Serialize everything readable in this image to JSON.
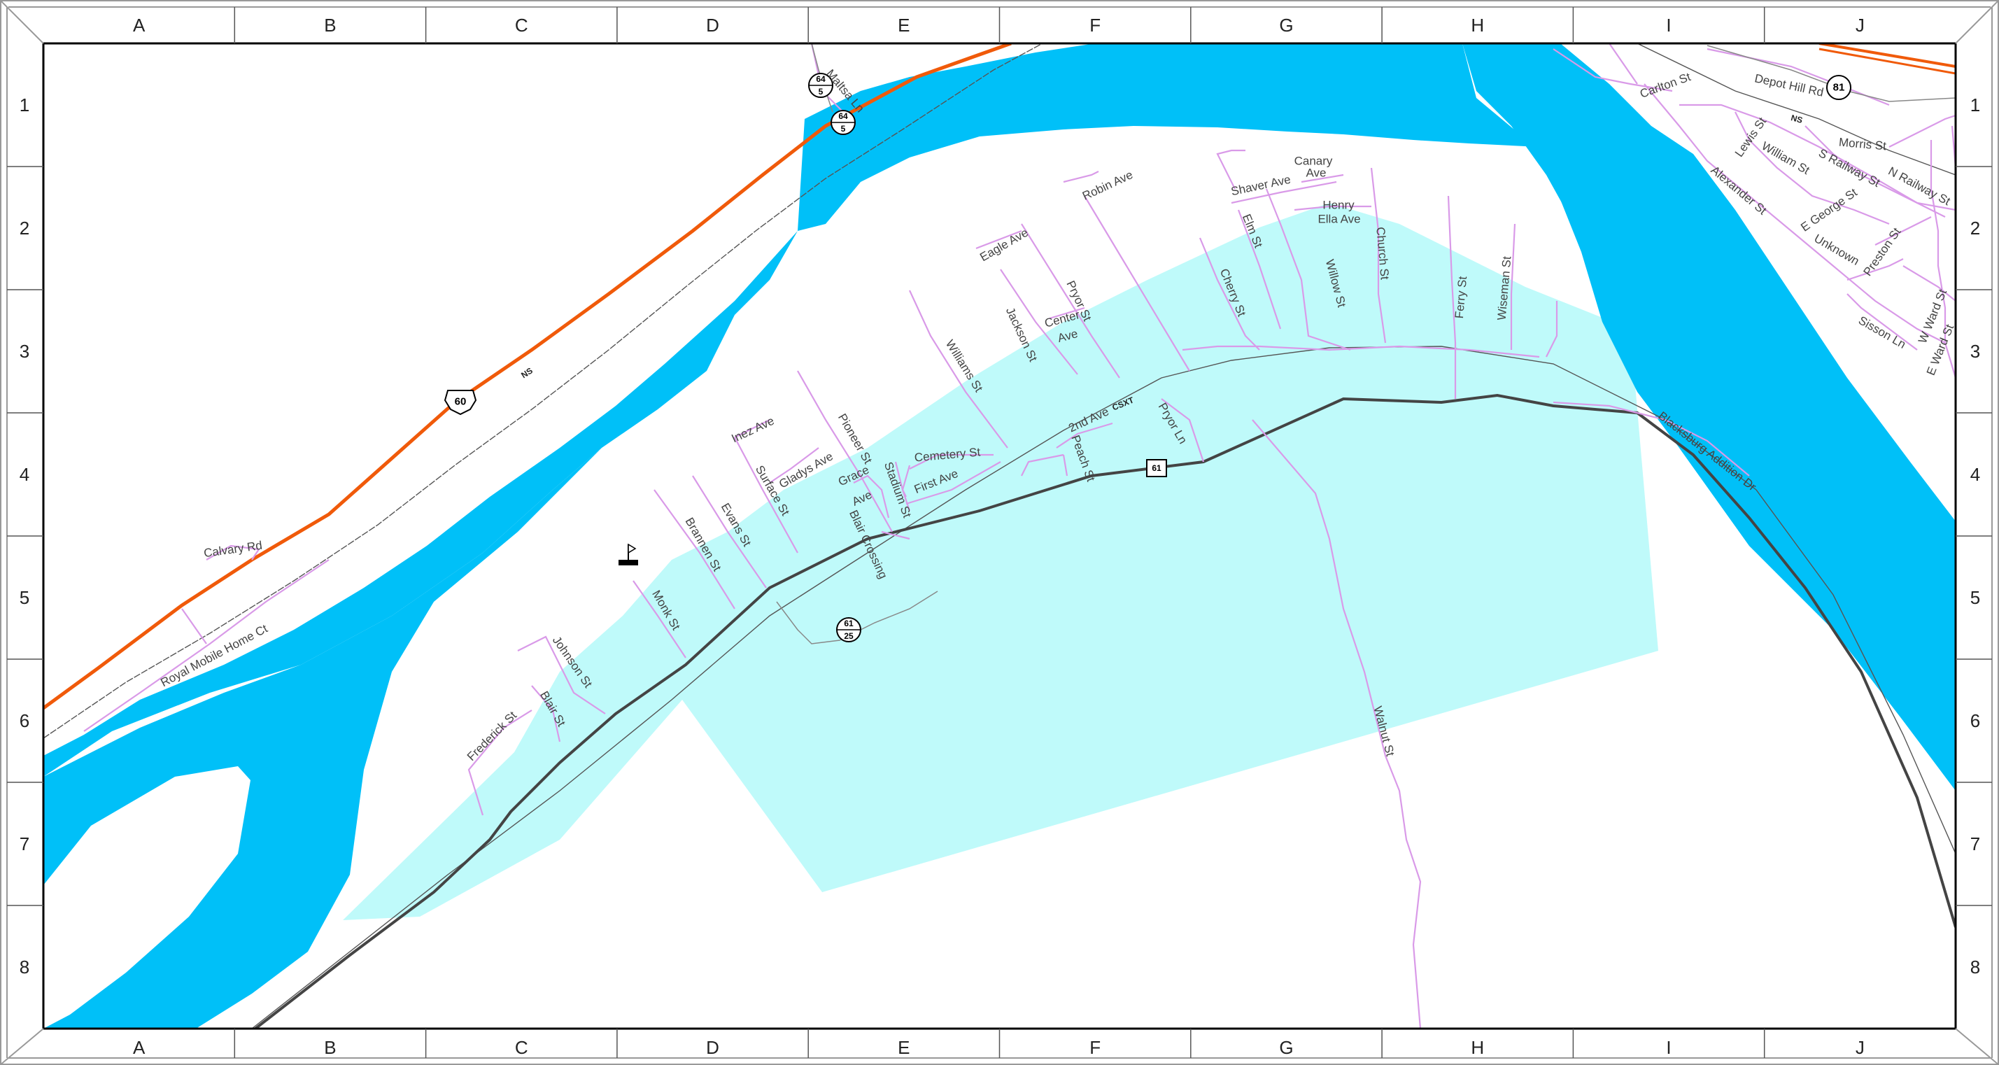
{
  "grid": {
    "columns": [
      "A",
      "B",
      "C",
      "D",
      "E",
      "F",
      "G",
      "H",
      "I",
      "J"
    ],
    "rows": [
      "1",
      "2",
      "3",
      "4",
      "5",
      "6",
      "7",
      "8"
    ]
  },
  "colors": {
    "water": "#00c0f8",
    "town_area": "#bffafa",
    "street": "#d99ae8",
    "highway": "#f05a0a",
    "main_road": "#444444",
    "railroad": "#555555",
    "frame": "#ffffff"
  },
  "railroads": {
    "ns_label": "NS",
    "csxt_label": "CSXT"
  },
  "shields": {
    "us60": "60",
    "route61": "61",
    "sr81": "81",
    "sr64_top": "64",
    "sr64_bottom": "5",
    "sr61_top": "61",
    "sr61_bottom": "25"
  },
  "streets": [
    "Calvary Rd",
    "Royal Mobile Home Ct",
    "Maltsa Ln",
    "Frederick St",
    "Blair St",
    "Johnson St",
    "Monk St",
    "Brannen St",
    "Evans St",
    "Inez Ave",
    "Surface St",
    "Gladys Ave",
    "Pioneer St",
    "Grace Ave",
    "Stadium St",
    "Blair Crossing",
    "Cemetery St",
    "First Ave",
    "Williams St",
    "Eagle Ave",
    "Jackson St",
    "Center Ave",
    "Pryor St",
    "2nd Ave",
    "Peach St",
    "Pryor Ln",
    "Robin Ave",
    "Cherry St",
    "Elm St",
    "Shaver Ave",
    "Canary Ave",
    "Henry",
    "Ella Ave",
    "Willow St",
    "Church St",
    "Ferry St",
    "Wiseman St",
    "Walnut St",
    "Blacksburg Addition Dr",
    "Carlton St",
    "Depot Hill Rd",
    "Morris St",
    "Lewis St",
    "William St",
    "S Railway St",
    "N Railway St",
    "Alexander St",
    "E George St",
    "Unknown",
    "Preston St",
    "W Ward St",
    "E Ward St",
    "Sisson Ln"
  ],
  "landmark_icon": "flag-marker-icon"
}
